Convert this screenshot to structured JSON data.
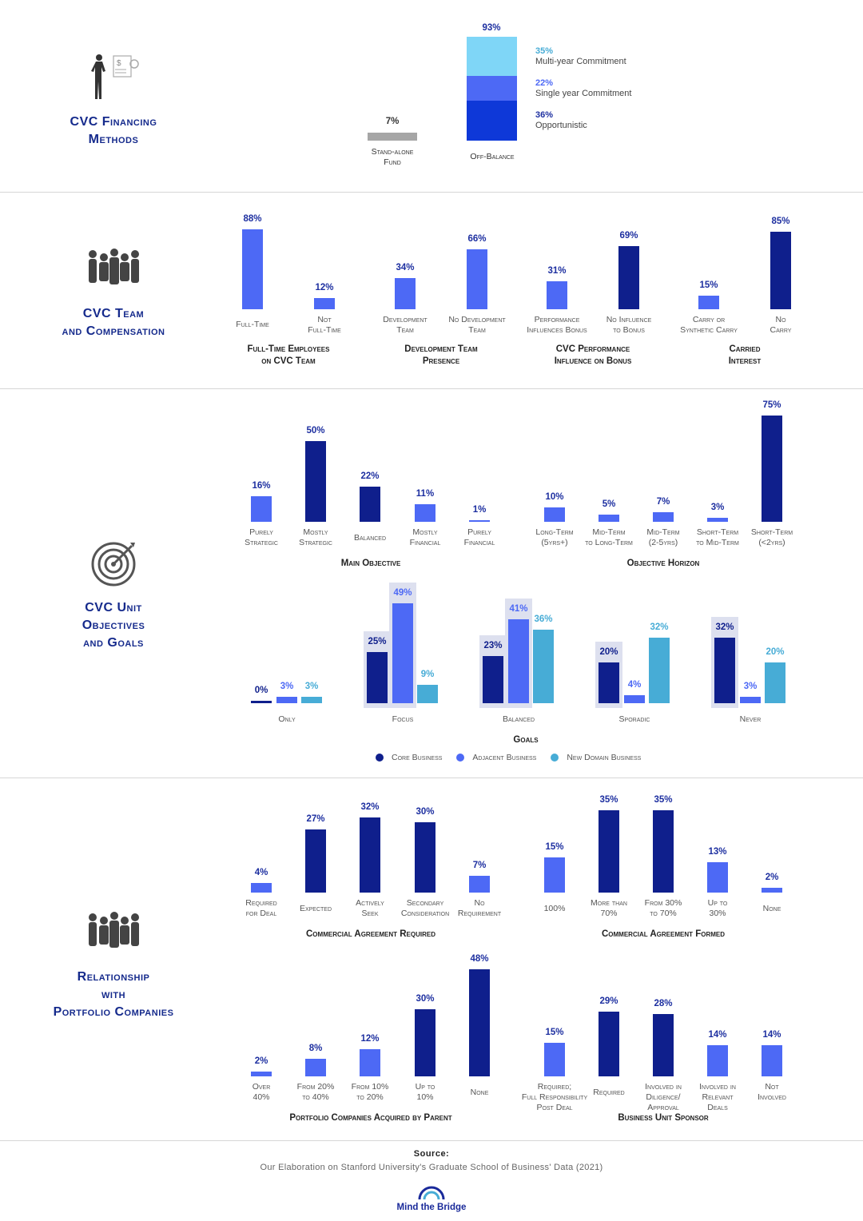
{
  "sections": [
    {
      "title": "CVC Financing\nMethods",
      "icon": "businessperson-finance-icon"
    },
    {
      "title": "CVC Team\nand Compensation",
      "icon": "team-group-icon"
    },
    {
      "title": "CVC Unit\nObjectives\nand Goals",
      "icon": "target-icon"
    },
    {
      "title": "Relationship\nwith\nPortfolio Companies",
      "icon": "team-group-icon"
    }
  ],
  "colors": {
    "dark": "#0f1f8c",
    "light": "#4d69f5",
    "core": "#0f1f8c",
    "adjacent": "#4d69f5",
    "new_domain": "#47acd6",
    "multi_year": "#7fd6f7",
    "single_year": "#4d69f5",
    "opportunistic": "#0e38d8",
    "stand_alone": "#a6a6a6",
    "highlight": "#dde0ef"
  },
  "chart_data": [
    {
      "type": "bar",
      "stacked": true,
      "title": "",
      "categories": [
        "Stand-alone\nFund",
        "Off-Balance"
      ],
      "values": [
        7,
        93
      ],
      "value_labels": [
        "7%",
        "93%"
      ],
      "stack": [
        {
          "name": "Multi-year Commitment",
          "value": 35,
          "label": "35%"
        },
        {
          "name": "Single year Commitment",
          "value": 22,
          "label": "22%"
        },
        {
          "name": "Opportunistic",
          "value": 36,
          "label": "36%"
        }
      ]
    },
    {
      "type": "bar",
      "title": "Full-Time Employees\non CVC Team",
      "categories": [
        "Full-Time",
        "Not\nFull-Time"
      ],
      "values": [
        88,
        12
      ],
      "value_labels": [
        "88%",
        "12%"
      ],
      "tones": [
        "light",
        "light"
      ]
    },
    {
      "type": "bar",
      "title": "Development Team\nPresence",
      "categories": [
        "Development\nTeam",
        "No Development\nTeam"
      ],
      "values": [
        34,
        66
      ],
      "value_labels": [
        "34%",
        "66%"
      ],
      "tones": [
        "light",
        "light"
      ]
    },
    {
      "type": "bar",
      "title": "CVC Performance\nInfluence on Bonus",
      "categories": [
        "Performance\nInfluences Bonus",
        "No Influence\nto Bonus"
      ],
      "values": [
        31,
        69
      ],
      "value_labels": [
        "31%",
        "69%"
      ],
      "tones": [
        "light",
        "dark"
      ]
    },
    {
      "type": "bar",
      "title": "Carried\nInterest",
      "categories": [
        "Carry or\nSynthetic Carry",
        "No\nCarry"
      ],
      "values": [
        15,
        85
      ],
      "value_labels": [
        "15%",
        "85%"
      ],
      "tones": [
        "light",
        "dark"
      ]
    },
    {
      "type": "bar",
      "title": "Main Objective",
      "categories": [
        "Purely\nStrategic",
        "Mostly\nStrategic",
        "Balanced",
        "Mostly\nFinancial",
        "Purely\nFinancial"
      ],
      "values": [
        16,
        50,
        22,
        11,
        1
      ],
      "value_labels": [
        "16%",
        "50%",
        "22%",
        "11%",
        "1%"
      ],
      "tones": [
        "light",
        "dark",
        "dark",
        "light",
        "light"
      ]
    },
    {
      "type": "bar",
      "title": "Objective Horizon",
      "categories": [
        "Long-Term\n(5yrs+)",
        "Mid-Term\nto Long-Term",
        "Mid-Term\n(2-5yrs)",
        "Short-Term\nto Mid-Term",
        "Short-Term\n(<2yrs)"
      ],
      "values": [
        10,
        5,
        7,
        3,
        75
      ],
      "value_labels": [
        "10%",
        "5%",
        "7%",
        "3%",
        "75%"
      ],
      "tones": [
        "light",
        "light",
        "light",
        "light",
        "dark"
      ]
    },
    {
      "type": "bar",
      "grouped": true,
      "title": "Goals",
      "categories": [
        "Only",
        "Focus",
        "Balanced",
        "Sporadic",
        "Never"
      ],
      "series": [
        {
          "name": "Core Business",
          "tone": "core",
          "values": [
            0,
            25,
            23,
            20,
            32
          ],
          "value_labels": [
            "0%",
            "25%",
            "23%",
            "20%",
            "32%"
          ],
          "highlighted": [
            false,
            true,
            true,
            true,
            true
          ]
        },
        {
          "name": "Adjacent Business",
          "tone": "adjacent",
          "values": [
            3,
            49,
            41,
            4,
            3
          ],
          "value_labels": [
            "3%",
            "49%",
            "41%",
            "4%",
            "3%"
          ],
          "highlighted": [
            false,
            true,
            true,
            false,
            false
          ]
        },
        {
          "name": "New Domain Business",
          "tone": "new_domain",
          "values": [
            3,
            9,
            36,
            32,
            20
          ],
          "value_labels": [
            "3%",
            "9%",
            "36%",
            "32%",
            "20%"
          ],
          "highlighted": [
            false,
            false,
            false,
            false,
            false
          ]
        }
      ],
      "legend": "bottom"
    },
    {
      "type": "bar",
      "title": "Commercial Agreement Required",
      "categories": [
        "Required\nfor Deal",
        "Expected",
        "Actively\nSeek",
        "Secondary\nConsideration",
        "No\nRequirement"
      ],
      "values": [
        4,
        27,
        32,
        30,
        7
      ],
      "value_labels": [
        "4%",
        "27%",
        "32%",
        "30%",
        "7%"
      ],
      "tones": [
        "light",
        "dark",
        "dark",
        "dark",
        "light"
      ]
    },
    {
      "type": "bar",
      "title": "Commercial Agreement Formed",
      "categories": [
        "100%",
        "More than\n70%",
        "From 30%\nto 70%",
        "Up to\n30%",
        "None"
      ],
      "values": [
        15,
        35,
        35,
        13,
        2
      ],
      "value_labels": [
        "15%",
        "35%",
        "35%",
        "13%",
        "2%"
      ],
      "tones": [
        "light",
        "dark",
        "dark",
        "light",
        "light"
      ]
    },
    {
      "type": "bar",
      "title": "Portfolio Companies Acquired by Parent",
      "categories": [
        "Over\n40%",
        "From 20%\nto 40%",
        "From 10%\nto 20%",
        "Up to\n10%",
        "None"
      ],
      "values": [
        2,
        8,
        12,
        30,
        48
      ],
      "value_labels": [
        "2%",
        "8%",
        "12%",
        "30%",
        "48%"
      ],
      "tones": [
        "light",
        "light",
        "light",
        "dark",
        "dark"
      ]
    },
    {
      "type": "bar",
      "title": "Business Unit Sponsor",
      "categories": [
        "Required;\nFull Responsibility\nPost Deal",
        "Required",
        "Involved in\nDiligence/\nApproval",
        "Involved in\nRelevant\nDeals",
        "Not\nInvolved"
      ],
      "values": [
        15,
        29,
        28,
        14,
        14
      ],
      "value_labels": [
        "15%",
        "29%",
        "28%",
        "14%",
        "14%"
      ],
      "tones": [
        "light",
        "dark",
        "dark",
        "light",
        "light"
      ]
    }
  ],
  "footer": {
    "source_title": "Source:",
    "source_text": "Our Elaboration on Stanford University's Graduate School of Business' Data (2021)",
    "logo_text": "Mind the Bridge"
  }
}
